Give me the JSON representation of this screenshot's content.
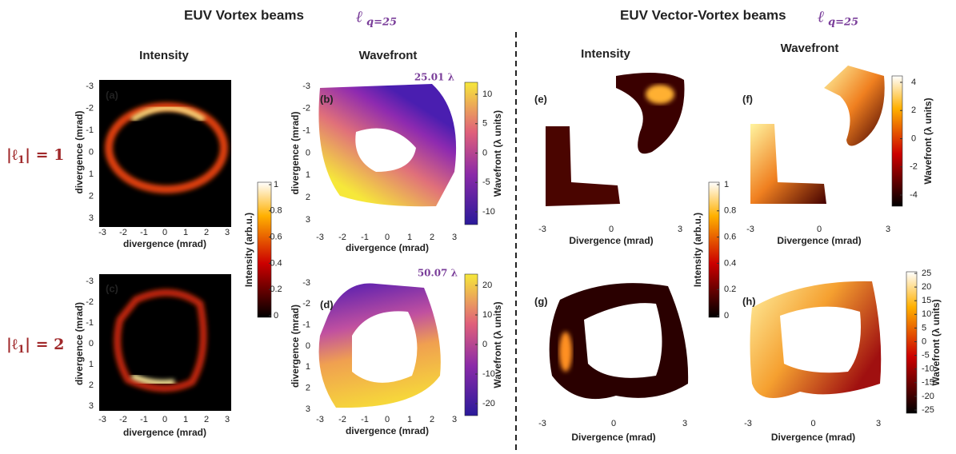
{
  "sections": [
    {
      "title": "EUV Vortex beams",
      "ell": "ℓ",
      "sub": "q=25"
    },
    {
      "title": "EUV Vector-Vortex beams",
      "ell": "ℓ",
      "sub": "q=25"
    }
  ],
  "column_headers": [
    "Intensity",
    "Wavefront",
    "Intensity",
    "Wavefront"
  ],
  "row_labels": [
    {
      "text": "|ℓ",
      "sub": "1",
      "rest": "| = 1"
    },
    {
      "text": "|ℓ",
      "sub": "1",
      "rest": "| = 2"
    }
  ],
  "panels": [
    {
      "label": "(a)",
      "xlabel": "divergence (mrad)",
      "ylabel": "divergence (mrad)",
      "xticks": [
        -3,
        -2,
        -1,
        0,
        1,
        2,
        3
      ],
      "yticks": [
        -3,
        -2,
        -1,
        0,
        1,
        2,
        3
      ]
    },
    {
      "label": "(b)",
      "xlabel": "divergence (mrad)",
      "ylabel": "divergence (mrad)",
      "xticks": [
        -3,
        -2,
        -1,
        0,
        1,
        2,
        3
      ],
      "yticks": [
        -3,
        -2,
        -1,
        0,
        1,
        2,
        3
      ],
      "annotation": "25.01 λ"
    },
    {
      "label": "(c)",
      "xlabel": "divergence (mrad)",
      "ylabel": "divergence (mrad)",
      "xticks": [
        -3,
        -2,
        -1,
        0,
        1,
        2,
        3
      ],
      "yticks": [
        -3,
        -2,
        -1,
        0,
        1,
        2,
        3
      ]
    },
    {
      "label": "(d)",
      "xlabel": "divergence (mrad)",
      "ylabel": "divergence (mrad)",
      "xticks": [
        -3,
        -2,
        -1,
        0,
        1,
        2,
        3
      ],
      "yticks": [
        -3,
        -2,
        -1,
        0,
        1,
        2,
        3
      ],
      "annotation": "50.07 λ"
    },
    {
      "label": "(e)",
      "xlabel": "Divergence (mrad)",
      "xticks": [
        -3,
        0,
        3
      ]
    },
    {
      "label": "(f)",
      "xlabel": "Divergence (mrad)",
      "xticks": [
        -3,
        0,
        3
      ]
    },
    {
      "label": "(g)",
      "xlabel": "Divergence (mrad)",
      "xticks": [
        -3,
        0,
        3
      ]
    },
    {
      "label": "(h)",
      "xlabel": "Divergence (mrad)",
      "xticks": [
        -3,
        0,
        3
      ]
    }
  ],
  "colorbars": [
    {
      "label": "Intensity (arb.u.)",
      "ticks": [
        1,
        0.8,
        0.6,
        0.4,
        0.2,
        0
      ]
    },
    {
      "label": "Wavefront (λ units)",
      "ticks": [
        10,
        5,
        0,
        -5,
        -10
      ]
    },
    {
      "label": "Wavefront (λ units)",
      "ticks": [
        20,
        10,
        0,
        -10,
        -20
      ]
    },
    {
      "label": "Intensity (arb.u.)",
      "ticks": [
        1,
        0.8,
        0.6,
        0.4,
        0.2,
        0
      ]
    },
    {
      "label": "Wavefront (λ units)",
      "ticks": [
        4,
        2,
        0,
        -2,
        -4
      ]
    },
    {
      "label": "Wavefront (λ units)",
      "ticks": [
        25,
        20,
        15,
        10,
        5,
        0,
        -5,
        -10,
        -15,
        -20,
        -25
      ]
    }
  ]
}
